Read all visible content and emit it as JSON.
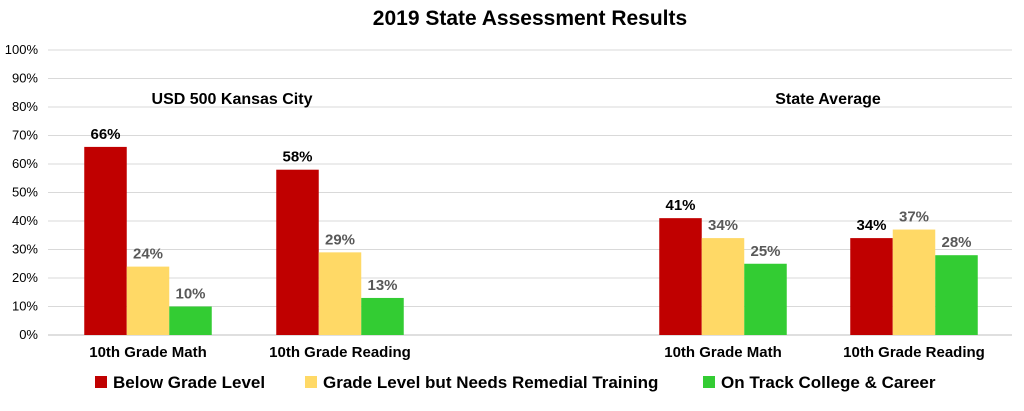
{
  "chart_data": {
    "type": "bar",
    "title": "2019 State Assessment Results",
    "ylim": [
      0,
      100
    ],
    "yticks": [
      "0%",
      "10%",
      "20%",
      "30%",
      "40%",
      "50%",
      "60%",
      "70%",
      "80%",
      "90%",
      "100%"
    ],
    "grid": true,
    "legend_position": "bottom",
    "series": [
      {
        "name": "Below Grade Level",
        "color": "#c00000"
      },
      {
        "name": "Grade Level but Needs Remedial Training",
        "color": "#ffd966"
      },
      {
        "name": "On Track College & Career",
        "color": "#33cc33"
      }
    ],
    "groups": [
      {
        "label": "USD 500 Kansas City",
        "categories": [
          {
            "label": "10th Grade Math",
            "values": [
              66,
              24,
              10
            ],
            "value_labels": [
              "66%",
              "24%",
              "10%"
            ]
          },
          {
            "label": "10th Grade Reading",
            "values": [
              58,
              29,
              13
            ],
            "value_labels": [
              "58%",
              "29%",
              "13%"
            ]
          }
        ]
      },
      {
        "label": "State Average",
        "categories": [
          {
            "label": "10th Grade Math",
            "values": [
              41,
              34,
              25
            ],
            "value_labels": [
              "41%",
              "34%",
              "25%"
            ]
          },
          {
            "label": "10th Grade Reading",
            "values": [
              34,
              37,
              28
            ],
            "value_labels": [
              "34%",
              "37%",
              "28%"
            ]
          }
        ]
      }
    ],
    "label_colors": {
      "first_series": "#000000",
      "other_series": "#595959"
    }
  }
}
